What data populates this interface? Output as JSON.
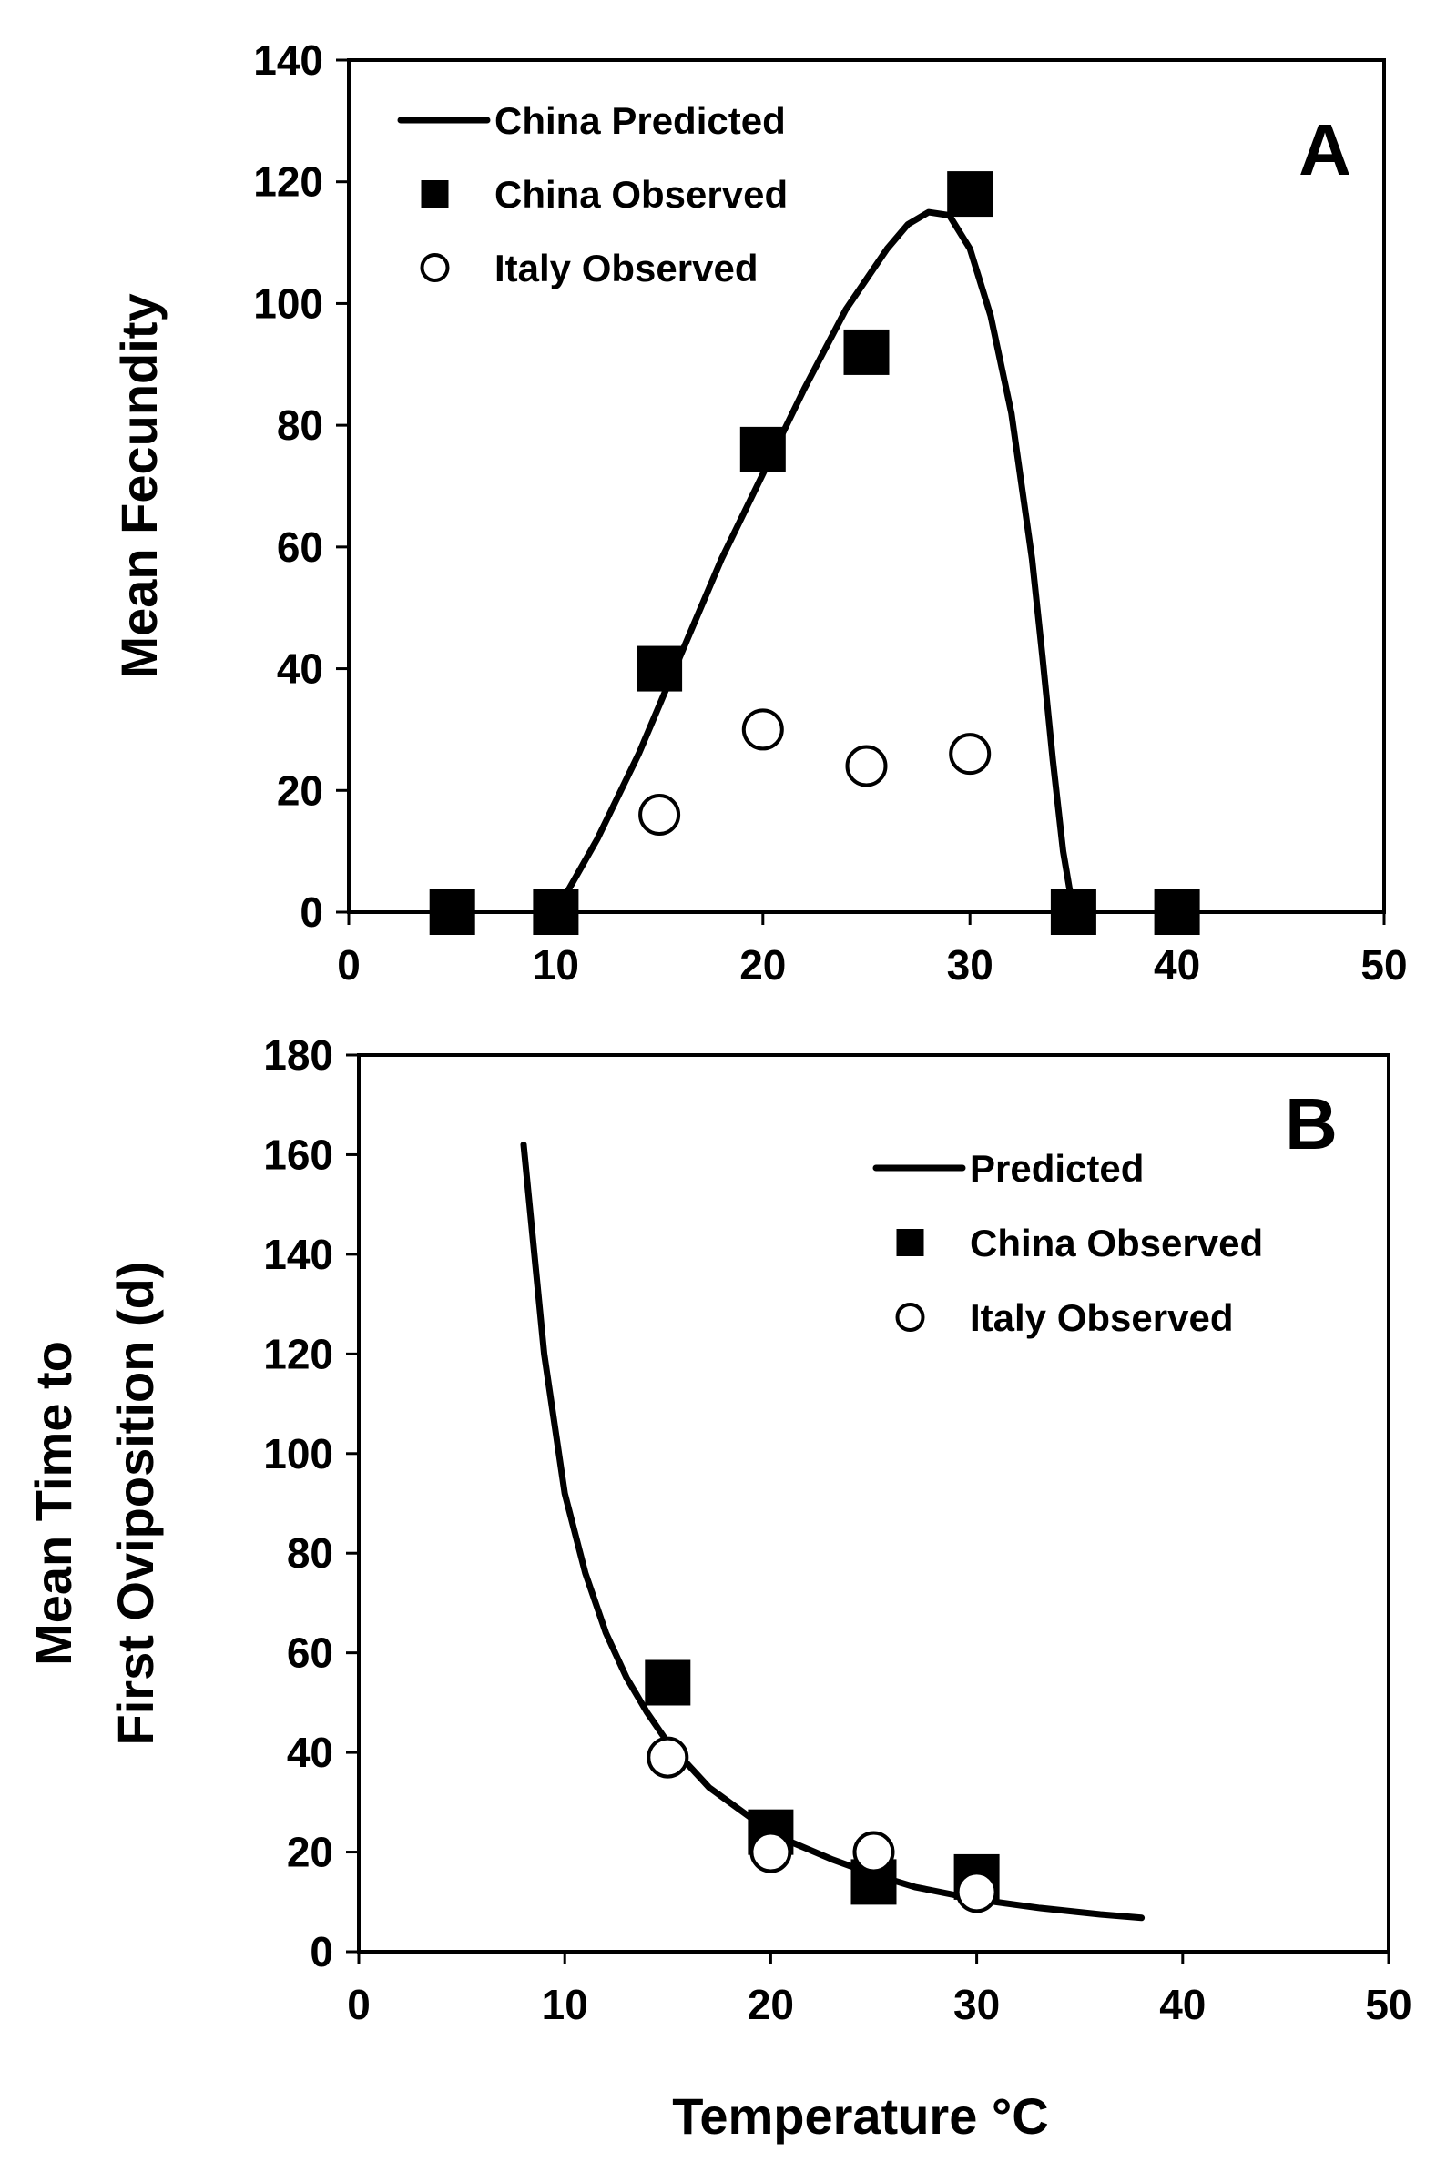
{
  "figure": {
    "xlabel": "Temperature °C"
  },
  "chart_data": [
    {
      "type": "line",
      "panel": "A",
      "ylabel": "Mean Fecundity",
      "xlim": [
        0,
        50
      ],
      "ylim": [
        0,
        140
      ],
      "xticks": [
        0,
        10,
        20,
        30,
        40,
        50
      ],
      "yticks": [
        0,
        20,
        40,
        60,
        80,
        100,
        120,
        140
      ],
      "legend_position": "top-left",
      "series": [
        {
          "name": "China Predicted",
          "kind": "line",
          "x": [
            10,
            12,
            14,
            16,
            18,
            20,
            22,
            24,
            26,
            27,
            28,
            29,
            30,
            31,
            32,
            33,
            33.5,
            34,
            34.5,
            35
          ],
          "y": [
            0,
            12,
            26,
            42,
            58,
            72,
            86,
            99,
            109,
            113,
            115,
            114.5,
            109,
            98,
            82,
            58,
            42,
            25,
            10,
            0
          ]
        },
        {
          "name": "China Observed",
          "kind": "square",
          "x": [
            5,
            10,
            15,
            20,
            25,
            30,
            35,
            40
          ],
          "y": [
            0,
            0,
            40,
            76,
            92,
            118,
            0,
            0
          ]
        },
        {
          "name": "Italy Observed",
          "kind": "circle",
          "x": [
            15,
            20,
            25,
            30
          ],
          "y": [
            16,
            30,
            24,
            26
          ]
        }
      ]
    },
    {
      "type": "line",
      "panel": "B",
      "ylabel_lines": [
        "Mean Time to",
        "First Oviposition (d)"
      ],
      "xlim": [
        0,
        50
      ],
      "ylim": [
        0,
        180
      ],
      "xticks": [
        0,
        10,
        20,
        30,
        40,
        50
      ],
      "yticks": [
        0,
        20,
        40,
        60,
        80,
        100,
        120,
        140,
        160,
        180
      ],
      "legend_position": "top-right",
      "series": [
        {
          "name": "Predicted",
          "kind": "line",
          "x": [
            8,
            9,
            10,
            11,
            12,
            13,
            14,
            15,
            17,
            19,
            21,
            23,
            25,
            27,
            30,
            33,
            36,
            38
          ],
          "y": [
            162,
            120,
            92,
            76,
            64,
            55,
            48,
            42,
            33,
            27,
            22,
            18.5,
            15.5,
            13,
            10.5,
            8.8,
            7.5,
            6.8
          ]
        },
        {
          "name": "China Observed",
          "kind": "square",
          "x": [
            15,
            20,
            25,
            30
          ],
          "y": [
            54,
            24,
            14,
            15
          ]
        },
        {
          "name": "Italy Observed",
          "kind": "circle",
          "x": [
            15,
            20,
            25,
            30
          ],
          "y": [
            39,
            20,
            20,
            12
          ]
        }
      ]
    }
  ]
}
